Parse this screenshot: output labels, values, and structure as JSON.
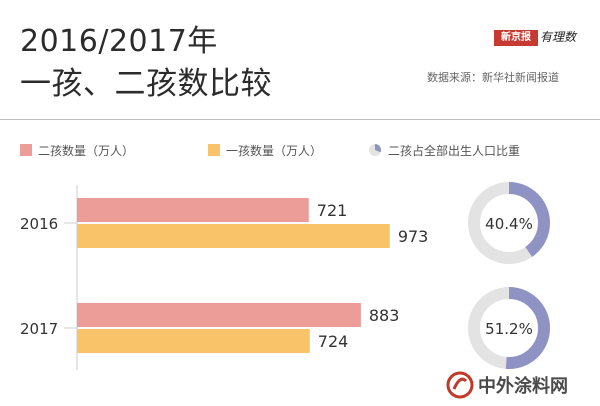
{
  "header": {
    "title_line_1": "2016/2017年",
    "title_line_2": "一孩、二孩数比较",
    "source": "数据来源：新华社新闻报道",
    "logo_seal": "新京报",
    "logo_script": "有理数"
  },
  "legend": [
    {
      "label": "二孩数量（万人）",
      "color": "#ec9d98",
      "kind": "bar"
    },
    {
      "label": "一孩数量（万人）",
      "color": "#f9c469",
      "kind": "bar"
    },
    {
      "label": "二孩占全部出生人口比重",
      "color": "#8e93c4",
      "kind": "pie"
    }
  ],
  "watermark": {
    "text": "中外涂料网"
  },
  "colors": {
    "second_child": "#ec9d98",
    "first_child": "#f9c469",
    "share": "#8e93c4",
    "ring_track": "#e3e3e3",
    "axis": "#cccccc"
  },
  "chart_data": {
    "type": "bar",
    "orientation": "horizontal",
    "categories": [
      "2016",
      "2017"
    ],
    "series": [
      {
        "name": "二孩数量（万人）",
        "values": [
          721,
          883
        ]
      },
      {
        "name": "一孩数量（万人）",
        "values": [
          973,
          724
        ]
      }
    ],
    "share": {
      "name": "二孩占全部出生人口比重",
      "values": [
        40.4,
        51.2
      ],
      "labels": [
        "40.4%",
        "51.2%"
      ]
    },
    "grid": false
  }
}
